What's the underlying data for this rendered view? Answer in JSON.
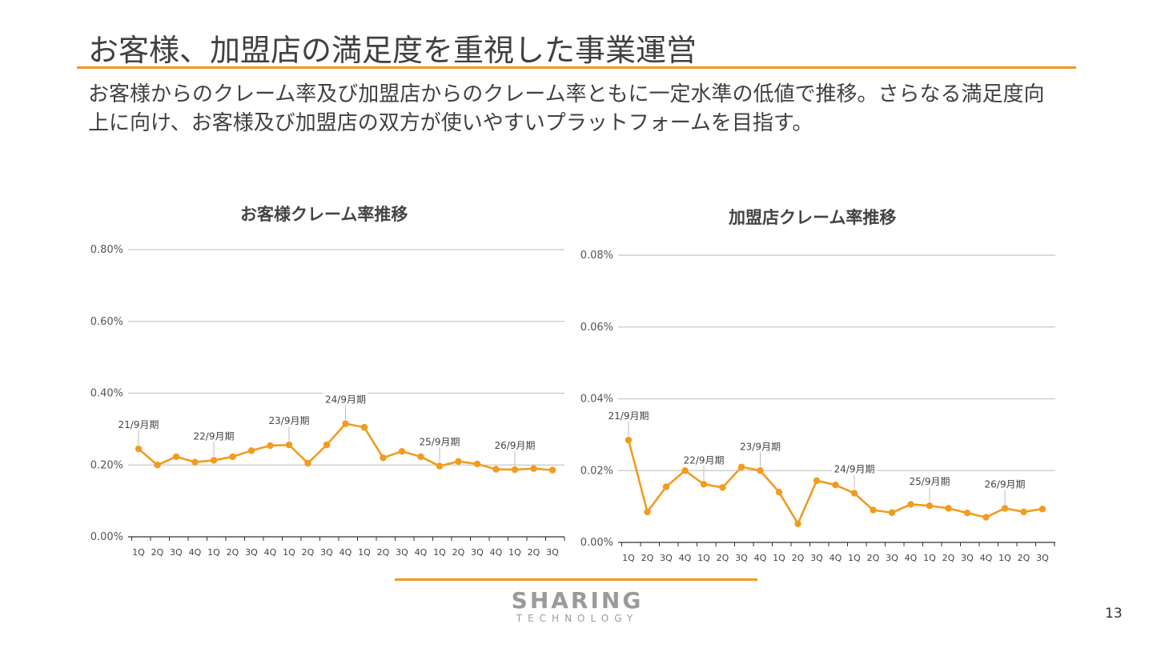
{
  "title": "お客様、加盟店の満足度を重視した事業運営",
  "lead_text": "お客様からのクレーム率及び加盟店からのクレーム率ともに一定水準の低値で推移。さらなる満足度向上に向け、お客様及び加盟店の双方が使いやすいプラットフォームを目指す。",
  "accent_color": "#F29B1E",
  "chart_data": [
    {
      "type": "line",
      "title": "お客様クレーム率推移",
      "categories": [
        "1Q",
        "2Q",
        "3Q",
        "4Q",
        "1Q",
        "2Q",
        "3Q",
        "4Q",
        "1Q",
        "2Q",
        "3Q",
        "4Q",
        "1Q",
        "2Q",
        "3Q",
        "4Q",
        "1Q",
        "2Q",
        "3Q",
        "4Q",
        "1Q",
        "2Q",
        "3Q"
      ],
      "series": [
        {
          "values": [
            0.245,
            0.2,
            0.223,
            0.208,
            0.213,
            0.223,
            0.24,
            0.254,
            0.256,
            0.205,
            0.256,
            0.315,
            0.305,
            0.22,
            0.238,
            0.223,
            0.197,
            0.21,
            0.203,
            0.188,
            0.187,
            0.19,
            0.186
          ]
        }
      ],
      "yticks": [
        "0.00%",
        "0.20%",
        "0.40%",
        "0.60%",
        "0.80%"
      ],
      "ylim": [
        0,
        0.8
      ],
      "grid": true,
      "period_labels": [
        {
          "label": "21/9月期",
          "index": 0
        },
        {
          "label": "22/9月期",
          "index": 4
        },
        {
          "label": "23/9月期",
          "index": 8
        },
        {
          "label": "24/9月期",
          "index": 11
        },
        {
          "label": "25/9月期",
          "index": 16
        },
        {
          "label": "26/9月期",
          "index": 20
        }
      ]
    },
    {
      "type": "line",
      "title": "加盟店クレーム率推移",
      "categories": [
        "1Q",
        "2Q",
        "3Q",
        "4Q",
        "1Q",
        "2Q",
        "3Q",
        "4Q",
        "1Q",
        "2Q",
        "3Q",
        "4Q",
        "1Q",
        "2Q",
        "3Q",
        "4Q",
        "1Q",
        "2Q",
        "3Q",
        "4Q",
        "1Q",
        "2Q",
        "3Q"
      ],
      "series": [
        {
          "values": [
            0.0285,
            0.0085,
            0.0155,
            0.02,
            0.0162,
            0.0153,
            0.021,
            0.02,
            0.014,
            0.0052,
            0.0172,
            0.016,
            0.0137,
            0.009,
            0.0083,
            0.0106,
            0.0102,
            0.0095,
            0.0082,
            0.007,
            0.0095,
            0.0085,
            0.0093
          ]
        }
      ],
      "yticks": [
        "0.00%",
        "0.02%",
        "0.04%",
        "0.06%",
        "0.08%"
      ],
      "ylim": [
        0,
        0.08
      ],
      "grid": true,
      "period_labels": [
        {
          "label": "21/9月期",
          "index": 0
        },
        {
          "label": "22/9月期",
          "index": 4
        },
        {
          "label": "23/9月期",
          "index": 7
        },
        {
          "label": "24/9月期",
          "index": 12
        },
        {
          "label": "25/9月期",
          "index": 16
        },
        {
          "label": "26/9月期",
          "index": 20
        }
      ]
    }
  ],
  "logo": {
    "main": "SHARING",
    "sub": "TECHNOLOGY"
  },
  "page_number": "13"
}
